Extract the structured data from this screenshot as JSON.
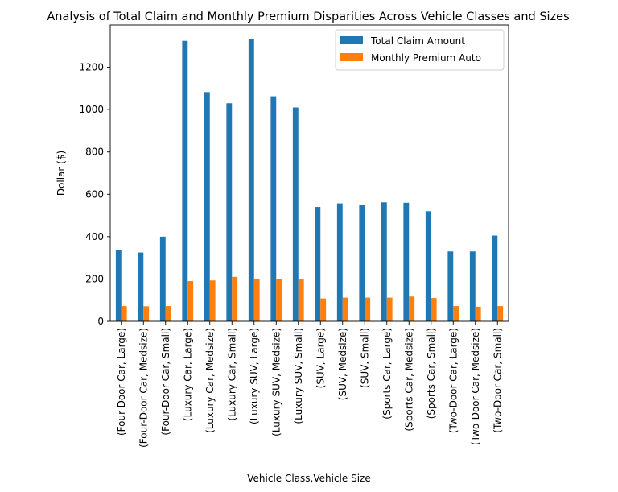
{
  "chart_data": {
    "type": "bar",
    "title": "Analysis of Total Claim and Monthly Premium Disparities Across Vehicle Classes and Sizes",
    "xlabel": "Vehicle Class,Vehicle Size",
    "ylabel": "Dollar ($)",
    "ylim": [
      0,
      1400
    ],
    "yticks": [
      0,
      200,
      400,
      600,
      800,
      1000,
      1200
    ],
    "grid": false,
    "legend_position": "top-right",
    "categories": [
      "(Four-Door Car, Large)",
      "(Four-Door Car, Medsize)",
      "(Four-Door Car, Small)",
      "(Luxury Car, Large)",
      "(Luxury Car, Medsize)",
      "(Luxury Car, Small)",
      "(Luxury SUV, Large)",
      "(Luxury SUV, Medsize)",
      "(Luxury SUV, Small)",
      "(SUV, Large)",
      "(SUV, Medsize)",
      "(SUV, Small)",
      "(Sports Car, Large)",
      "(Sports Car, Medsize)",
      "(Sports Car, Small)",
      "(Two-Door Car, Large)",
      "(Two-Door Car, Medsize)",
      "(Two-Door Car, Small)"
    ],
    "series": [
      {
        "name": "Total Claim Amount",
        "color": "#1f77b4",
        "values": [
          337,
          325,
          400,
          1325,
          1083,
          1030,
          1333,
          1063,
          1010,
          540,
          557,
          550,
          562,
          560,
          520,
          330,
          330,
          405
        ]
      },
      {
        "name": "Monthly Premium Auto",
        "color": "#ff7f0e",
        "values": [
          72,
          71,
          72,
          190,
          193,
          210,
          198,
          200,
          198,
          108,
          112,
          112,
          112,
          117,
          110,
          72,
          69,
          72
        ]
      }
    ]
  }
}
